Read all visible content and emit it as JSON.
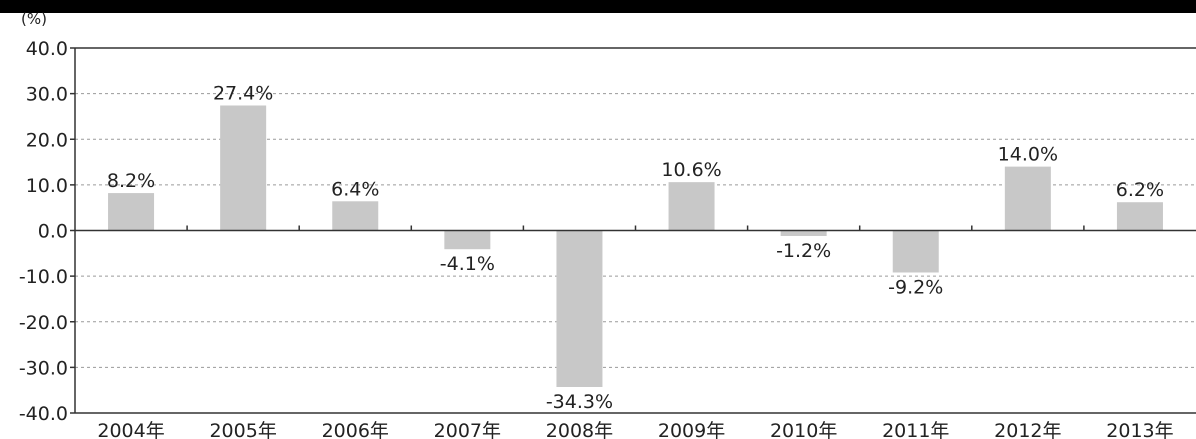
{
  "chart_data": {
    "type": "bar",
    "title": "",
    "xlabel": "",
    "ylabel": "",
    "y_unit_label": "(%)",
    "ylim": [
      -40,
      40
    ],
    "y_ticks": [
      40,
      30,
      20,
      10,
      0,
      -10,
      -20,
      -30,
      -40
    ],
    "y_tick_labels": [
      "40.0",
      "30.0",
      "20.0",
      "10.0",
      "0.0",
      "-10.0",
      "-20.0",
      "-30.0",
      "-40.0"
    ],
    "grid": true,
    "categories": [
      "2004年",
      "2005年",
      "2006年",
      "2007年",
      "2008年",
      "2009年",
      "2010年",
      "2011年",
      "2012年",
      "2013年"
    ],
    "values": [
      8.2,
      27.4,
      6.4,
      -4.1,
      -34.3,
      10.6,
      -1.2,
      -9.2,
      14.0,
      6.2
    ],
    "value_labels": [
      "8.2%",
      "27.4%",
      "6.4%",
      "-4.1%",
      "-34.3%",
      "10.6%",
      "-1.2%",
      "-9.2%",
      "14.0%",
      "6.2%"
    ],
    "colors": {
      "bar": "#c8c8c8",
      "axis": "#333333",
      "grid": "#9a9a9a",
      "topbar": "#000000"
    }
  }
}
